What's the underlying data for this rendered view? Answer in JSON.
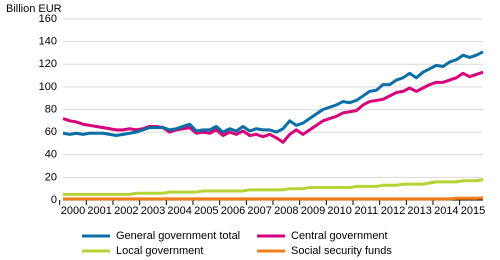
{
  "chart_data": {
    "type": "line",
    "y_label": "Billion EUR",
    "categories": [
      "2000",
      null,
      null,
      null,
      "2001",
      null,
      null,
      null,
      "2002",
      null,
      null,
      null,
      "2003",
      null,
      null,
      null,
      "2004",
      null,
      null,
      null,
      "2005",
      null,
      null,
      null,
      "2006",
      null,
      null,
      null,
      "2007",
      null,
      null,
      null,
      "2008",
      null,
      null,
      null,
      "2009",
      null,
      null,
      null,
      "2010",
      null,
      null,
      null,
      "2011",
      null,
      null,
      null,
      "2012",
      null,
      null,
      null,
      "2013",
      null,
      null,
      null,
      "2014",
      null,
      null,
      null,
      "2015",
      null,
      null,
      null
    ],
    "ylim": [
      0,
      160
    ],
    "yticks": [
      0,
      20,
      40,
      60,
      80,
      100,
      120,
      140,
      160
    ],
    "grid": true,
    "series": [
      {
        "name": "General government total",
        "color": "#0a6fa6",
        "values": [
          59,
          58,
          59,
          58,
          59,
          59,
          59,
          58,
          57,
          58,
          59,
          60,
          62,
          64,
          64,
          64,
          62,
          63,
          65,
          67,
          61,
          62,
          62,
          65,
          60,
          63,
          61,
          65,
          61,
          63,
          62,
          62,
          60,
          63,
          70,
          66,
          68,
          72,
          76,
          80,
          82,
          84,
          87,
          86,
          88,
          92,
          96,
          97,
          102,
          102,
          106,
          108,
          112,
          108,
          113,
          116,
          119,
          118,
          122,
          124,
          128,
          126,
          128,
          131
        ]
      },
      {
        "name": "Central government",
        "color": "#d6007a",
        "values": [
          72,
          70,
          69,
          67,
          66,
          65,
          64,
          63,
          62,
          62,
          63,
          62,
          63,
          65,
          65,
          64,
          60,
          62,
          63,
          64,
          59,
          60,
          59,
          62,
          57,
          60,
          58,
          61,
          57,
          58,
          56,
          58,
          55,
          51,
          58,
          62,
          58,
          62,
          66,
          70,
          72,
          74,
          77,
          78,
          79,
          84,
          87,
          88,
          89,
          92,
          95,
          96,
          99,
          96,
          99,
          102,
          104,
          104,
          106,
          108,
          112,
          109,
          111,
          113
        ]
      },
      {
        "name": "Local government",
        "color": "#b5d334",
        "values": [
          5,
          5,
          5,
          5,
          5,
          5,
          5,
          5,
          5,
          5,
          5,
          6,
          6,
          6,
          6,
          6,
          7,
          7,
          7,
          7,
          7,
          8,
          8,
          8,
          8,
          8,
          8,
          8,
          9,
          9,
          9,
          9,
          9,
          9,
          10,
          10,
          10,
          11,
          11,
          11,
          11,
          11,
          11,
          11,
          12,
          12,
          12,
          12,
          13,
          13,
          13,
          14,
          14,
          14,
          14,
          15,
          16,
          16,
          16,
          16,
          17,
          17,
          17,
          18
        ]
      },
      {
        "name": "Social security funds",
        "color": "#f07f1a",
        "values": [
          1,
          1,
          1,
          1,
          1,
          1,
          1,
          1,
          1,
          1,
          1,
          1,
          1,
          1,
          1,
          1,
          1,
          1,
          1,
          1,
          1,
          1,
          1,
          1,
          1,
          1,
          1,
          1,
          1,
          1,
          1,
          1,
          1,
          1,
          1,
          1,
          1,
          1,
          1,
          1,
          1,
          1,
          1,
          1,
          1,
          1,
          1,
          1,
          1,
          1,
          1,
          1,
          1,
          1,
          1,
          1,
          1,
          1,
          1,
          1.5,
          1.5,
          1.5,
          1.5,
          2
        ]
      }
    ]
  }
}
